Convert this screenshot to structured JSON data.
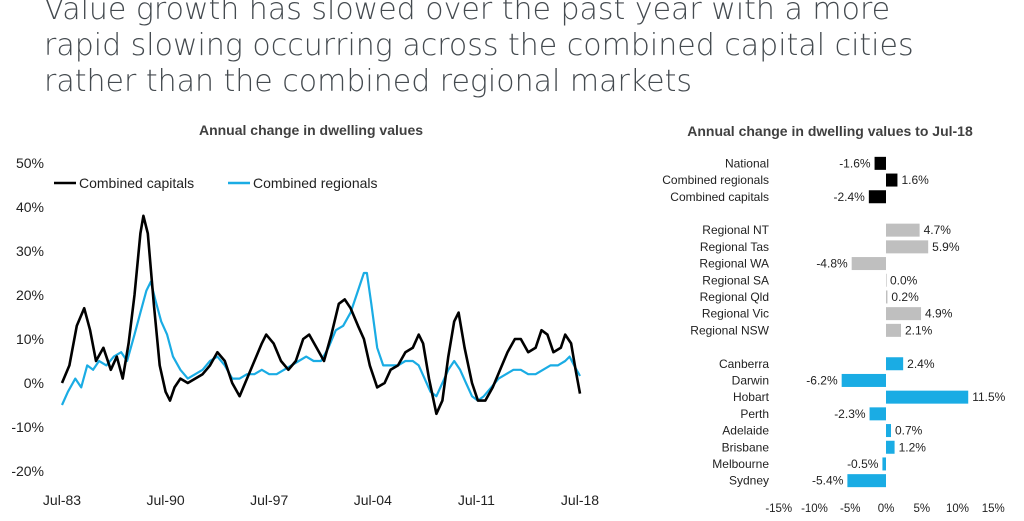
{
  "headline": [
    "Value growth has slowed over the past year with a more",
    "rapid slowing occurring across the combined capital cities",
    "rather than the combined regional markets"
  ],
  "chart_data": [
    {
      "type": "line",
      "title": "Annual change in dwelling values",
      "x_ticks": [
        "Jul-83",
        "Jul-90",
        "Jul-97",
        "Jul-04",
        "Jul-11",
        "Jul-18"
      ],
      "y_ticks": [
        "50%",
        "40%",
        "30%",
        "20%",
        "10%",
        "0%",
        "-10%",
        "-20%"
      ],
      "ylim": [
        -20,
        50
      ],
      "xlim": [
        1983.5,
        2018.5
      ],
      "legend_position": "top-left",
      "series": [
        {
          "name": "Combined capitals",
          "color": "#000000",
          "points": [
            [
              1983.5,
              0
            ],
            [
              1984.0,
              4
            ],
            [
              1984.5,
              13
            ],
            [
              1985.0,
              17
            ],
            [
              1985.4,
              12
            ],
            [
              1985.8,
              5
            ],
            [
              1986.3,
              8
            ],
            [
              1986.8,
              3
            ],
            [
              1987.2,
              6
            ],
            [
              1987.6,
              1
            ],
            [
              1988.0,
              9
            ],
            [
              1988.4,
              20
            ],
            [
              1988.8,
              34
            ],
            [
              1989.0,
              38
            ],
            [
              1989.3,
              34
            ],
            [
              1989.7,
              18
            ],
            [
              1990.1,
              4
            ],
            [
              1990.5,
              -2
            ],
            [
              1990.8,
              -4
            ],
            [
              1991.1,
              -1
            ],
            [
              1991.5,
              1
            ],
            [
              1992.0,
              0
            ],
            [
              1992.5,
              1
            ],
            [
              1993.0,
              2
            ],
            [
              1993.5,
              4
            ],
            [
              1994.0,
              7
            ],
            [
              1994.5,
              5
            ],
            [
              1995.0,
              0
            ],
            [
              1995.5,
              -3
            ],
            [
              1996.0,
              1
            ],
            [
              1996.5,
              5
            ],
            [
              1997.0,
              9
            ],
            [
              1997.3,
              11
            ],
            [
              1997.8,
              9
            ],
            [
              1998.3,
              5
            ],
            [
              1998.8,
              3
            ],
            [
              1999.3,
              5
            ],
            [
              1999.8,
              10
            ],
            [
              2000.2,
              11
            ],
            [
              2000.7,
              8
            ],
            [
              2001.2,
              5
            ],
            [
              2001.7,
              11
            ],
            [
              2002.2,
              18
            ],
            [
              2002.6,
              19
            ],
            [
              2003.0,
              17
            ],
            [
              2003.5,
              13
            ],
            [
              2003.9,
              10
            ],
            [
              2004.3,
              4
            ],
            [
              2004.8,
              -1
            ],
            [
              2005.3,
              0
            ],
            [
              2005.7,
              3
            ],
            [
              2006.2,
              4
            ],
            [
              2006.7,
              7
            ],
            [
              2007.2,
              8
            ],
            [
              2007.6,
              11
            ],
            [
              2007.9,
              9
            ],
            [
              2008.3,
              1
            ],
            [
              2008.8,
              -7
            ],
            [
              2009.2,
              -4
            ],
            [
              2009.6,
              6
            ],
            [
              2010.0,
              14
            ],
            [
              2010.3,
              16
            ],
            [
              2010.7,
              8
            ],
            [
              2011.2,
              0
            ],
            [
              2011.6,
              -4
            ],
            [
              2012.1,
              -4
            ],
            [
              2012.6,
              -1
            ],
            [
              2013.1,
              3
            ],
            [
              2013.6,
              7
            ],
            [
              2014.1,
              10
            ],
            [
              2014.5,
              10
            ],
            [
              2015.0,
              7
            ],
            [
              2015.5,
              8
            ],
            [
              2015.9,
              12
            ],
            [
              2016.3,
              11
            ],
            [
              2016.7,
              7
            ],
            [
              2017.2,
              8
            ],
            [
              2017.5,
              11
            ],
            [
              2017.9,
              9
            ],
            [
              2018.2,
              3
            ],
            [
              2018.5,
              -2.4
            ]
          ]
        },
        {
          "name": "Combined regionals",
          "color": "#1aace4",
          "points": [
            [
              1983.5,
              -5
            ],
            [
              1983.9,
              -2
            ],
            [
              1984.4,
              1
            ],
            [
              1984.8,
              -1
            ],
            [
              1985.2,
              4
            ],
            [
              1985.6,
              3
            ],
            [
              1986.0,
              5
            ],
            [
              1986.5,
              4
            ],
            [
              1987.0,
              6
            ],
            [
              1987.5,
              7
            ],
            [
              1987.9,
              5
            ],
            [
              1988.4,
              11
            ],
            [
              1988.8,
              16
            ],
            [
              1989.2,
              21
            ],
            [
              1989.5,
              23
            ],
            [
              1989.8,
              19
            ],
            [
              1990.2,
              14
            ],
            [
              1990.6,
              11
            ],
            [
              1991.0,
              6
            ],
            [
              1991.5,
              3
            ],
            [
              1992.0,
              1
            ],
            [
              1992.5,
              2
            ],
            [
              1993.0,
              3
            ],
            [
              1993.5,
              5
            ],
            [
              1994.0,
              6
            ],
            [
              1994.5,
              4
            ],
            [
              1995.0,
              1
            ],
            [
              1995.5,
              1
            ],
            [
              1996.0,
              2
            ],
            [
              1996.5,
              2
            ],
            [
              1997.0,
              3
            ],
            [
              1997.5,
              2
            ],
            [
              1998.0,
              2
            ],
            [
              1998.5,
              3
            ],
            [
              1999.0,
              4
            ],
            [
              1999.5,
              5
            ],
            [
              2000.0,
              6
            ],
            [
              2000.5,
              5
            ],
            [
              2001.0,
              5
            ],
            [
              2001.5,
              8
            ],
            [
              2002.0,
              12
            ],
            [
              2002.5,
              13
            ],
            [
              2003.0,
              16
            ],
            [
              2003.5,
              21
            ],
            [
              2003.9,
              25
            ],
            [
              2004.1,
              25
            ],
            [
              2004.4,
              18
            ],
            [
              2004.8,
              8
            ],
            [
              2005.2,
              4
            ],
            [
              2005.7,
              4
            ],
            [
              2006.2,
              4
            ],
            [
              2006.7,
              5
            ],
            [
              2007.2,
              5
            ],
            [
              2007.6,
              4
            ],
            [
              2008.0,
              1
            ],
            [
              2008.4,
              -2
            ],
            [
              2008.8,
              -3
            ],
            [
              2009.2,
              0
            ],
            [
              2009.6,
              3
            ],
            [
              2010.0,
              5
            ],
            [
              2010.4,
              3
            ],
            [
              2010.8,
              0
            ],
            [
              2011.2,
              -3
            ],
            [
              2011.6,
              -4
            ],
            [
              2012.0,
              -3
            ],
            [
              2012.5,
              -1
            ],
            [
              2013.0,
              1
            ],
            [
              2013.5,
              2
            ],
            [
              2014.0,
              3
            ],
            [
              2014.5,
              3
            ],
            [
              2015.0,
              2
            ],
            [
              2015.5,
              2
            ],
            [
              2016.0,
              3
            ],
            [
              2016.5,
              4
            ],
            [
              2017.0,
              4
            ],
            [
              2017.5,
              5
            ],
            [
              2017.8,
              6
            ],
            [
              2018.1,
              4
            ],
            [
              2018.5,
              1.6
            ]
          ]
        }
      ]
    },
    {
      "type": "bar",
      "orientation": "horizontal",
      "title": "Annual change in dwelling values to Jul-18",
      "x_ticks": [
        "-15%",
        "-10%",
        "-5%",
        "0%",
        "5%",
        "10%",
        "15%"
      ],
      "xlim": [
        -15,
        15
      ],
      "colors": {
        "national": "#000000",
        "regional": "#bfbfbf",
        "capital": "#1aace4"
      },
      "groups": [
        {
          "color": "national",
          "items": [
            {
              "label": "National",
              "value": -1.6,
              "value_label": "-1.6%"
            },
            {
              "label": "Combined regionals",
              "value": 1.6,
              "value_label": "1.6%"
            },
            {
              "label": "Combined capitals",
              "value": -2.4,
              "value_label": "-2.4%"
            }
          ]
        },
        {
          "color": "regional",
          "items": [
            {
              "label": "Regional NT",
              "value": 4.7,
              "value_label": "4.7%"
            },
            {
              "label": "Regional Tas",
              "value": 5.9,
              "value_label": "5.9%"
            },
            {
              "label": "Regional WA",
              "value": -4.8,
              "value_label": "-4.8%"
            },
            {
              "label": "Regional SA",
              "value": 0.0,
              "value_label": "0.0%"
            },
            {
              "label": "Regional Qld",
              "value": 0.2,
              "value_label": "0.2%"
            },
            {
              "label": "Regional Vic",
              "value": 4.9,
              "value_label": "4.9%"
            },
            {
              "label": "Regional NSW",
              "value": 2.1,
              "value_label": "2.1%"
            }
          ]
        },
        {
          "color": "capital",
          "items": [
            {
              "label": "Canberra",
              "value": 2.4,
              "value_label": "2.4%"
            },
            {
              "label": "Darwin",
              "value": -6.2,
              "value_label": "-6.2%"
            },
            {
              "label": "Hobart",
              "value": 11.5,
              "value_label": "11.5%"
            },
            {
              "label": "Perth",
              "value": -2.3,
              "value_label": "-2.3%"
            },
            {
              "label": "Adelaide",
              "value": 0.7,
              "value_label": "0.7%"
            },
            {
              "label": "Brisbane",
              "value": 1.2,
              "value_label": "1.2%"
            },
            {
              "label": "Melbourne",
              "value": -0.5,
              "value_label": "-0.5%"
            },
            {
              "label": "Sydney",
              "value": -5.4,
              "value_label": "-5.4%"
            }
          ]
        }
      ]
    }
  ]
}
